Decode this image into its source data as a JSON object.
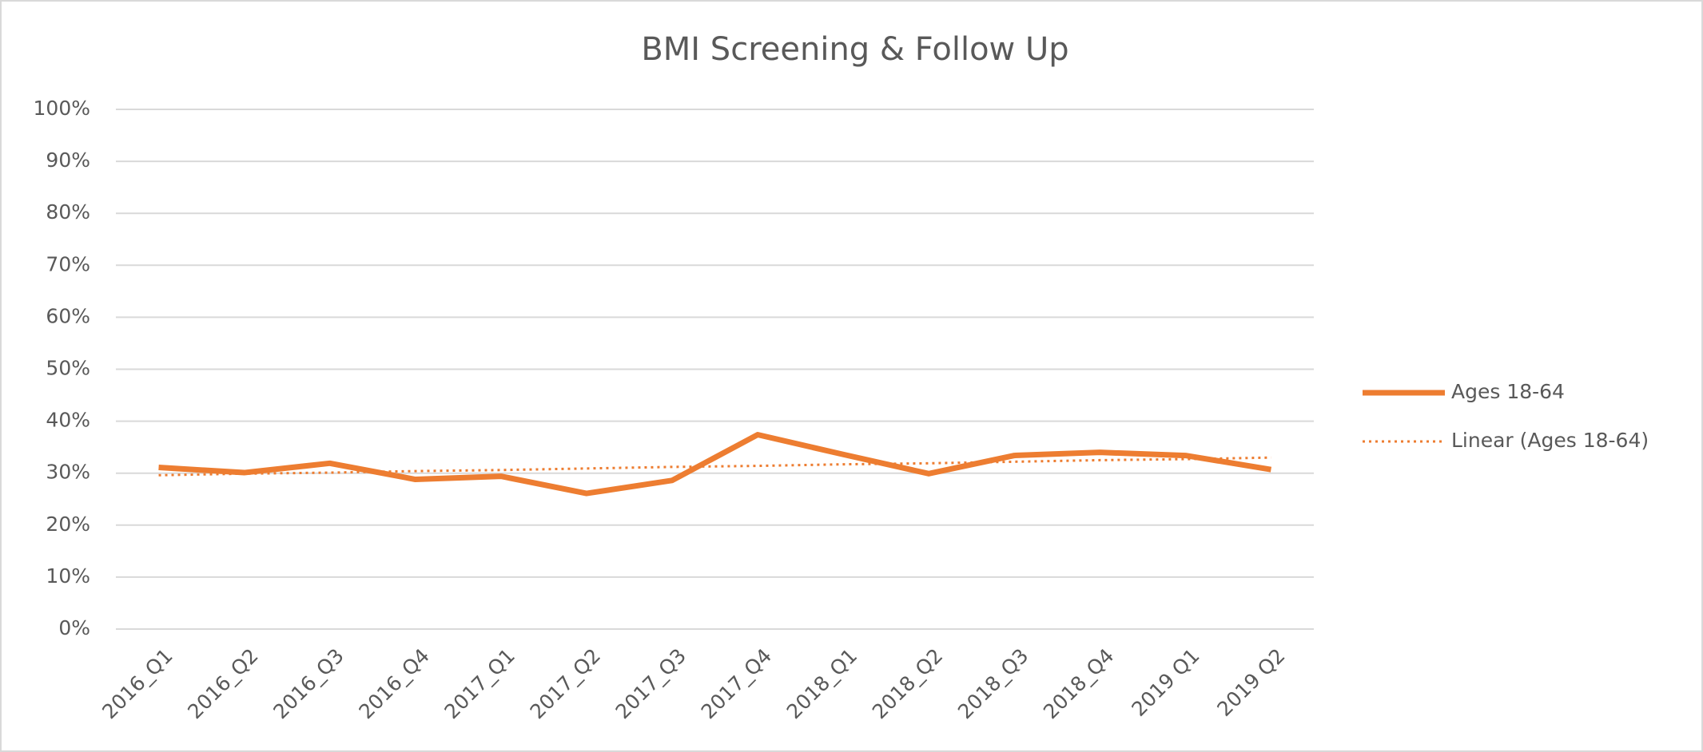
{
  "chart_data": {
    "type": "line",
    "title": "BMI Screening & Follow Up",
    "categories": [
      "2016_Q1",
      "2016_Q2",
      "2016_Q3",
      "2016_Q4",
      "2017_Q1",
      "2017_Q2",
      "2017_Q3",
      "2017_Q4",
      "2018_Q1",
      "2018_Q2",
      "2018_Q3",
      "2018_Q4",
      "2019 Q1",
      "2019 Q2"
    ],
    "series": [
      {
        "name": "Ages 18-64",
        "color": "#ed7d31",
        "style": "solid",
        "values": [
          31.1,
          30.1,
          31.9,
          28.8,
          29.4,
          26.1,
          28.6,
          37.4,
          33.6,
          29.9,
          33.4,
          34.0,
          33.4,
          30.7
        ]
      },
      {
        "name": "Linear (Ages 18-64)",
        "color": "#ed7d31",
        "style": "dotted",
        "values": [
          29.6,
          29.9,
          30.1,
          30.4,
          30.6,
          30.9,
          31.2,
          31.4,
          31.7,
          31.9,
          32.2,
          32.5,
          32.7,
          33.0
        ]
      }
    ],
    "ylim": [
      0,
      100
    ],
    "yticks": [
      {
        "value": 0,
        "label": "0%"
      },
      {
        "value": 10,
        "label": "10%"
      },
      {
        "value": 20,
        "label": "20%"
      },
      {
        "value": 30,
        "label": "30%"
      },
      {
        "value": 40,
        "label": "40%"
      },
      {
        "value": 50,
        "label": "50%"
      },
      {
        "value": 60,
        "label": "60%"
      },
      {
        "value": 70,
        "label": "70%"
      },
      {
        "value": 80,
        "label": "80%"
      },
      {
        "value": 90,
        "label": "90%"
      },
      {
        "value": 100,
        "label": "100%"
      }
    ],
    "grid": true,
    "legend": "right"
  }
}
